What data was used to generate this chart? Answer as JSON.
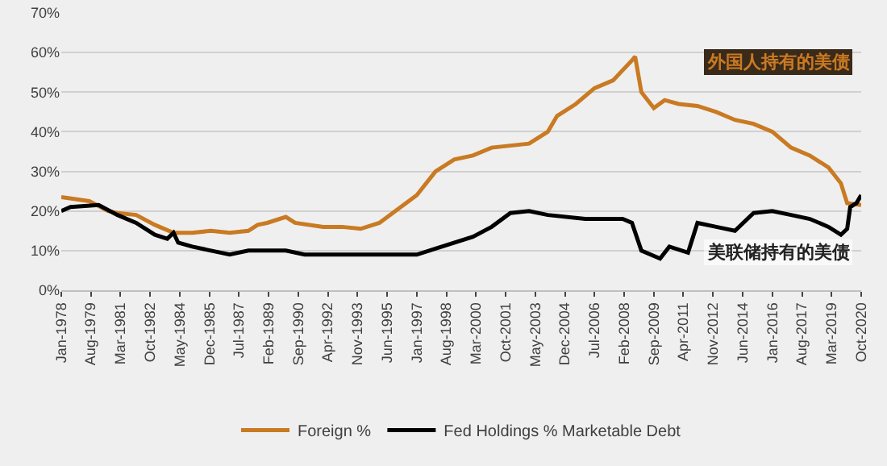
{
  "chart_data": {
    "type": "line",
    "xlim": [
      "1978-01",
      "2020-10"
    ],
    "ylim": [
      0,
      70
    ],
    "yticks": [
      {
        "value": 0,
        "label": "0%"
      },
      {
        "value": 10,
        "label": "10%"
      },
      {
        "value": 20,
        "label": "20%"
      },
      {
        "value": 30,
        "label": "30%"
      },
      {
        "value": 40,
        "label": "40%"
      },
      {
        "value": 50,
        "label": "50%"
      },
      {
        "value": 60,
        "label": "60%"
      },
      {
        "value": 70,
        "label": "70%"
      }
    ],
    "xticks": [
      {
        "value": "1978-01",
        "label": "Jan-1978"
      },
      {
        "value": "1979-08",
        "label": "Aug-1979"
      },
      {
        "value": "1981-03",
        "label": "Mar-1981"
      },
      {
        "value": "1982-10",
        "label": "Oct-1982"
      },
      {
        "value": "1984-05",
        "label": "May-1984"
      },
      {
        "value": "1985-12",
        "label": "Dec-1985"
      },
      {
        "value": "1987-07",
        "label": "Jul-1987"
      },
      {
        "value": "1989-02",
        "label": "Feb-1989"
      },
      {
        "value": "1990-09",
        "label": "Sep-1990"
      },
      {
        "value": "1992-04",
        "label": "Apr-1992"
      },
      {
        "value": "1993-11",
        "label": "Nov-1993"
      },
      {
        "value": "1995-06",
        "label": "Jun-1995"
      },
      {
        "value": "1997-01",
        "label": "Jan-1997"
      },
      {
        "value": "1998-08",
        "label": "Aug-1998"
      },
      {
        "value": "2000-03",
        "label": "Mar-2000"
      },
      {
        "value": "2001-10",
        "label": "Oct-2001"
      },
      {
        "value": "2003-05",
        "label": "May-2003"
      },
      {
        "value": "2004-12",
        "label": "Dec-2004"
      },
      {
        "value": "2006-07",
        "label": "Jul-2006"
      },
      {
        "value": "2008-02",
        "label": "Feb-2008"
      },
      {
        "value": "2009-09",
        "label": "Sep-2009"
      },
      {
        "value": "2011-04",
        "label": "Apr-2011"
      },
      {
        "value": "2012-11",
        "label": "Nov-2012"
      },
      {
        "value": "2014-06",
        "label": "Jun-2014"
      },
      {
        "value": "2016-01",
        "label": "Jan-2016"
      },
      {
        "value": "2017-08",
        "label": "Aug-2017"
      },
      {
        "value": "2019-03",
        "label": "Mar-2019"
      },
      {
        "value": "2020-10",
        "label": "Oct-2020"
      }
    ],
    "grid": "y",
    "legend": "bottom",
    "series": [
      {
        "name": "Foreign %",
        "color": "#c97a22",
        "x": [
          "1978-01",
          "1979-07",
          "1980-07",
          "1981-01",
          "1982-01",
          "1983-01",
          "1984-01",
          "1985-01",
          "1986-01",
          "1987-01",
          "1988-01",
          "1988-07",
          "1989-01",
          "1990-01",
          "1990-07",
          "1992-01",
          "1993-01",
          "1994-01",
          "1995-01",
          "1996-01",
          "1997-01",
          "1998-01",
          "1999-01",
          "2000-01",
          "2001-01",
          "2002-01",
          "2003-01",
          "2004-01",
          "2004-07",
          "2005-07",
          "2006-07",
          "2007-07",
          "2008-07",
          "2008-09",
          "2009-01",
          "2009-09",
          "2010-04",
          "2011-01",
          "2012-01",
          "2013-01",
          "2014-01",
          "2015-01",
          "2016-01",
          "2017-01",
          "2018-01",
          "2019-01",
          "2019-09",
          "2020-01",
          "2020-10"
        ],
        "values": [
          23.5,
          22.5,
          20,
          19.5,
          19,
          16.5,
          14.5,
          14.5,
          15,
          14.5,
          15,
          16.5,
          17,
          18.5,
          17,
          16,
          16,
          15.5,
          17,
          20.5,
          24,
          30,
          33,
          34,
          36,
          36.5,
          37,
          40,
          44,
          47,
          51,
          53,
          58,
          59,
          50,
          46,
          48,
          47,
          46.5,
          45,
          43,
          42,
          40,
          36,
          34,
          31,
          27,
          22,
          21.5
        ]
      },
      {
        "name": "Fed Holdings % Marketable Debt",
        "color": "#000000",
        "x": [
          "1978-01",
          "1978-07",
          "1980-01",
          "1981-01",
          "1982-01",
          "1983-01",
          "1983-09",
          "1984-01",
          "1984-04",
          "1985-01",
          "1986-01",
          "1987-01",
          "1988-01",
          "1990-01",
          "1991-01",
          "1993-01",
          "1995-01",
          "1997-01",
          "1998-01",
          "2000-01",
          "2001-01",
          "2002-01",
          "2003-01",
          "2004-01",
          "2006-01",
          "2008-01",
          "2008-07",
          "2009-01",
          "2010-01",
          "2010-07",
          "2011-07",
          "2012-01",
          "2013-01",
          "2014-01",
          "2015-01",
          "2016-01",
          "2017-01",
          "2018-01",
          "2019-01",
          "2019-09",
          "2020-01",
          "2020-03",
          "2020-07",
          "2020-10"
        ],
        "values": [
          20,
          21,
          21.5,
          19,
          17,
          14,
          13,
          14.5,
          12,
          11,
          10,
          9,
          10,
          10,
          9,
          9,
          9,
          9,
          10.5,
          13.5,
          16,
          19.5,
          20,
          19,
          18,
          18,
          17,
          10,
          8,
          11,
          9.5,
          17,
          16,
          15,
          19.5,
          20,
          19,
          18,
          16,
          14,
          15.5,
          21,
          22,
          24
        ]
      }
    ],
    "annotations": [
      "外国人持有的美债",
      "美联储持有的美债"
    ]
  }
}
